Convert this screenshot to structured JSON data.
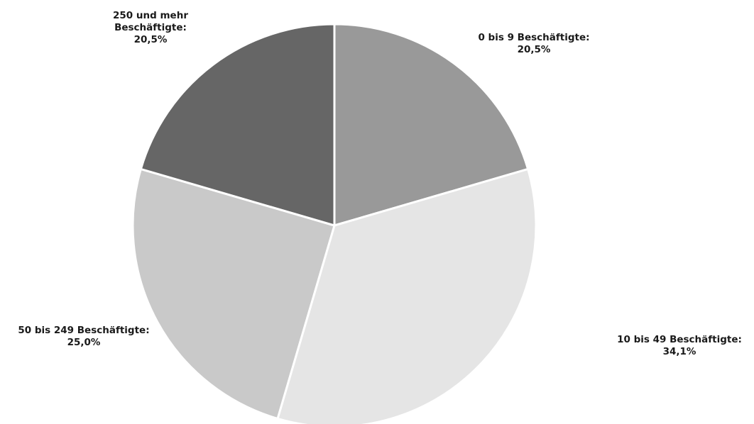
{
  "chart_data": {
    "type": "pie",
    "title": "",
    "slices": [
      {
        "category": "0 bis 9 Beschäftigte:",
        "label_lines": [
          "0 bis 9 Beschäftigte:",
          "20,5%"
        ],
        "value_label": "20,5%",
        "value": 20.5,
        "color": "#999999"
      },
      {
        "category": "10 bis 49 Beschäftigte:",
        "label_lines": [
          "10 bis 49 Beschäftigte:",
          "34,1%"
        ],
        "value_label": "34,1%",
        "value": 34.1,
        "color": "#e5e5e5"
      },
      {
        "category": "50 bis 249 Beschäftigte:",
        "label_lines": [
          "50 bis 249 Beschäftigte:",
          "25,0%"
        ],
        "value_label": "25,0%",
        "value": 25.0,
        "color": "#c9c9c9"
      },
      {
        "category": "250 und mehr Beschäftigte:",
        "label_lines": [
          "250 und mehr",
          "Beschäftigte:",
          "20,5%"
        ],
        "value_label": "20,5%",
        "value": 20.5,
        "color": "#666666"
      }
    ],
    "start_angle": "12 o'clock",
    "direction": "clockwise",
    "legend": "none"
  }
}
